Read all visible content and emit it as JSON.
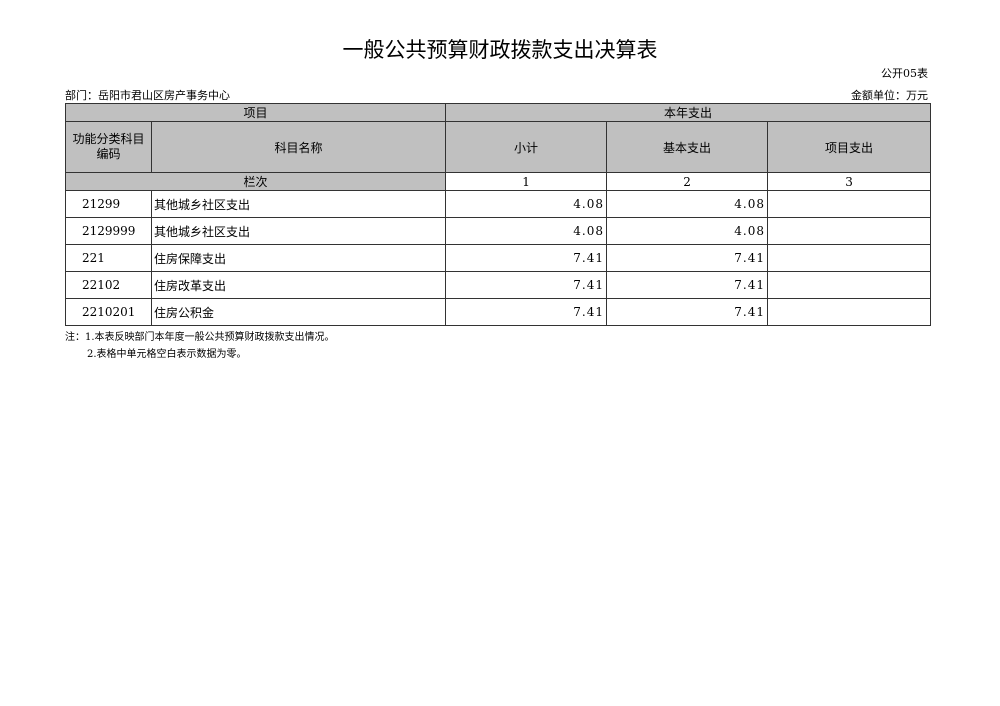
{
  "title": "一般公共预算财政拨款支出决算表",
  "form_no": "公开05表",
  "department": "部门：岳阳市君山区房产事务中心",
  "unit": "金额单位：万元",
  "headers": {
    "project": "项目",
    "current_year": "本年支出",
    "code": "功能分类科目编码",
    "name": "科目名称",
    "subtotal": "小计",
    "basic": "基本支出",
    "project_exp": "项目支出",
    "column_index": "栏次",
    "col1": "1",
    "col2": "2",
    "col3": "3"
  },
  "rows": [
    {
      "code": "21299",
      "name": "其他城乡社区支出",
      "subtotal": "4.08",
      "basic": "4.08",
      "project": ""
    },
    {
      "code": "2129999",
      "name": "其他城乡社区支出",
      "subtotal": "4.08",
      "basic": "4.08",
      "project": ""
    },
    {
      "code": "221",
      "name": "住房保障支出",
      "subtotal": "7.41",
      "basic": "7.41",
      "project": ""
    },
    {
      "code": "22102",
      "name": "住房改革支出",
      "subtotal": "7.41",
      "basic": "7.41",
      "project": ""
    },
    {
      "code": "2210201",
      "name": "住房公积金",
      "subtotal": "7.41",
      "basic": "7.41",
      "project": ""
    }
  ],
  "notes": [
    "注：1.本表反映部门本年度一般公共预算财政拨款支出情况。",
    "2.表格中单元格空白表示数据为零。"
  ]
}
